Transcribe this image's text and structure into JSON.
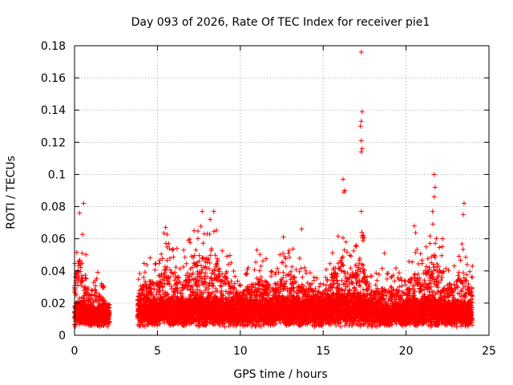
{
  "chart_data": {
    "type": "scatter",
    "title": "Day 093 of 2026, Rate Of TEC Index for receiver pie1",
    "xlabel": "GPS time / hours",
    "ylabel": "ROTI / TECUs",
    "xlim": [
      0,
      25
    ],
    "ylim": [
      0,
      0.18
    ],
    "x_ticks": [
      0,
      5,
      10,
      15,
      20,
      25
    ],
    "y_ticks": [
      0,
      0.02,
      0.04,
      0.06,
      0.08,
      0.1,
      0.12,
      0.14,
      0.16,
      0.18
    ],
    "grid": true,
    "marker": "+",
    "color": "#ff0000",
    "data_gap_hours": [
      2.1,
      3.8
    ],
    "envelope": [
      {
        "x": 0.0,
        "base": 0.013,
        "peak": 0.045
      },
      {
        "x": 0.3,
        "base": 0.016,
        "peak": 0.078
      },
      {
        "x": 0.6,
        "base": 0.014,
        "peak": 0.062
      },
      {
        "x": 1.0,
        "base": 0.012,
        "peak": 0.032
      },
      {
        "x": 1.4,
        "base": 0.012,
        "peak": 0.042
      },
      {
        "x": 2.0,
        "base": 0.012,
        "peak": 0.026
      },
      {
        "x": 4.0,
        "base": 0.015,
        "peak": 0.044
      },
      {
        "x": 5.0,
        "base": 0.016,
        "peak": 0.052
      },
      {
        "x": 5.5,
        "base": 0.016,
        "peak": 0.067
      },
      {
        "x": 6.5,
        "base": 0.015,
        "peak": 0.052
      },
      {
        "x": 7.0,
        "base": 0.017,
        "peak": 0.062
      },
      {
        "x": 7.8,
        "base": 0.017,
        "peak": 0.076
      },
      {
        "x": 8.5,
        "base": 0.016,
        "peak": 0.072
      },
      {
        "x": 9.0,
        "base": 0.015,
        "peak": 0.058
      },
      {
        "x": 10.0,
        "base": 0.015,
        "peak": 0.038
      },
      {
        "x": 11.0,
        "base": 0.015,
        "peak": 0.053
      },
      {
        "x": 12.0,
        "base": 0.016,
        "peak": 0.044
      },
      {
        "x": 13.0,
        "base": 0.016,
        "peak": 0.06
      },
      {
        "x": 14.0,
        "base": 0.016,
        "peak": 0.04
      },
      {
        "x": 15.0,
        "base": 0.015,
        "peak": 0.036
      },
      {
        "x": 15.5,
        "base": 0.017,
        "peak": 0.052
      },
      {
        "x": 16.0,
        "base": 0.019,
        "peak": 0.075
      },
      {
        "x": 16.5,
        "base": 0.017,
        "peak": 0.054
      },
      {
        "x": 17.2,
        "base": 0.018,
        "peak": 0.08
      },
      {
        "x": 18.0,
        "base": 0.014,
        "peak": 0.038
      },
      {
        "x": 19.0,
        "base": 0.013,
        "peak": 0.045
      },
      {
        "x": 20.0,
        "base": 0.014,
        "peak": 0.037
      },
      {
        "x": 20.5,
        "base": 0.016,
        "peak": 0.068
      },
      {
        "x": 21.0,
        "base": 0.015,
        "peak": 0.046
      },
      {
        "x": 21.7,
        "base": 0.017,
        "peak": 0.078
      },
      {
        "x": 22.5,
        "base": 0.014,
        "peak": 0.042
      },
      {
        "x": 23.5,
        "base": 0.014,
        "peak": 0.06
      },
      {
        "x": 24.0,
        "base": 0.014,
        "peak": 0.045
      }
    ],
    "outliers": [
      {
        "x": 0.55,
        "y": 0.082
      },
      {
        "x": 0.3,
        "y": 0.076
      },
      {
        "x": 7.7,
        "y": 0.077
      },
      {
        "x": 8.4,
        "y": 0.077
      },
      {
        "x": 13.7,
        "y": 0.066
      },
      {
        "x": 12.6,
        "y": 0.061
      },
      {
        "x": 16.2,
        "y": 0.097
      },
      {
        "x": 16.3,
        "y": 0.09
      },
      {
        "x": 16.25,
        "y": 0.089
      },
      {
        "x": 17.3,
        "y": 0.176
      },
      {
        "x": 17.35,
        "y": 0.139
      },
      {
        "x": 17.3,
        "y": 0.133
      },
      {
        "x": 17.25,
        "y": 0.13
      },
      {
        "x": 17.3,
        "y": 0.121
      },
      {
        "x": 17.35,
        "y": 0.116
      },
      {
        "x": 17.3,
        "y": 0.114
      },
      {
        "x": 17.3,
        "y": 0.077
      },
      {
        "x": 21.7,
        "y": 0.1
      },
      {
        "x": 21.75,
        "y": 0.092
      },
      {
        "x": 21.7,
        "y": 0.086
      },
      {
        "x": 21.6,
        "y": 0.077
      },
      {
        "x": 23.5,
        "y": 0.082
      },
      {
        "x": 23.45,
        "y": 0.075
      },
      {
        "x": 22.2,
        "y": 0.06
      },
      {
        "x": 20.5,
        "y": 0.068
      },
      {
        "x": 5.5,
        "y": 0.067
      },
      {
        "x": 11.0,
        "y": 0.053
      },
      {
        "x": 24.0,
        "y": 0.043
      },
      {
        "x": 18.7,
        "y": 0.051
      }
    ]
  }
}
